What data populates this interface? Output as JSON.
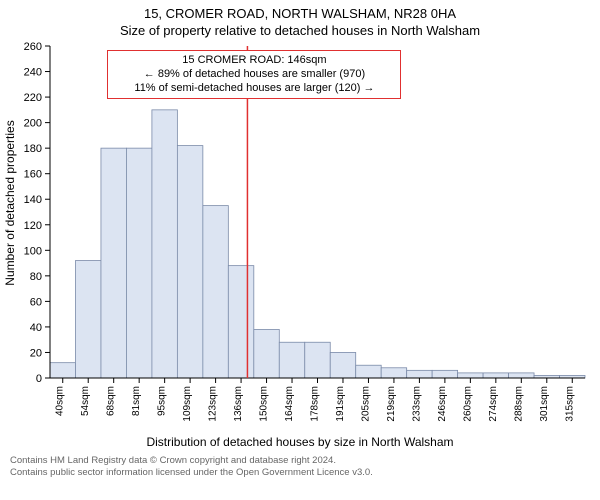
{
  "title_main": "15, CROMER ROAD, NORTH WALSHAM, NR28 0HA",
  "title_sub": "Size of property relative to detached houses in North Walsham",
  "chart": {
    "type": "histogram",
    "y_axis_label": "Number of detached properties",
    "x_caption": "Distribution of detached houses by size in North Walsham",
    "ylim": [
      0,
      260
    ],
    "ytick_step": 20,
    "x_categories": [
      "40sqm",
      "54sqm",
      "68sqm",
      "81sqm",
      "95sqm",
      "109sqm",
      "123sqm",
      "136sqm",
      "150sqm",
      "164sqm",
      "178sqm",
      "191sqm",
      "205sqm",
      "219sqm",
      "233sqm",
      "246sqm",
      "260sqm",
      "274sqm",
      "288sqm",
      "301sqm",
      "315sqm"
    ],
    "values": [
      12,
      92,
      180,
      180,
      210,
      182,
      135,
      88,
      38,
      28,
      28,
      20,
      10,
      8,
      6,
      6,
      4,
      4,
      4,
      2,
      2
    ],
    "bar_fill": "#dce4f2",
    "bar_stroke": "#7a8aa8",
    "background": "#ffffff",
    "axis_color": "#000000",
    "marker": {
      "color": "#e03030",
      "x_category_index_after": 8,
      "label_heading": "15 CROMER ROAD: 146sqm",
      "label_line2": "← 89% of detached houses are smaller (970)",
      "label_line3": "11% of semi-detached houses are larger (120) →"
    },
    "tick_fontsize": 11,
    "xtick_fontsize": 10,
    "title_fontsize": 13
  },
  "footer_line1": "Contains HM Land Registry data © Crown copyright and database right 2024.",
  "footer_line2": "Contains public sector information licensed under the Open Government Licence v3.0."
}
